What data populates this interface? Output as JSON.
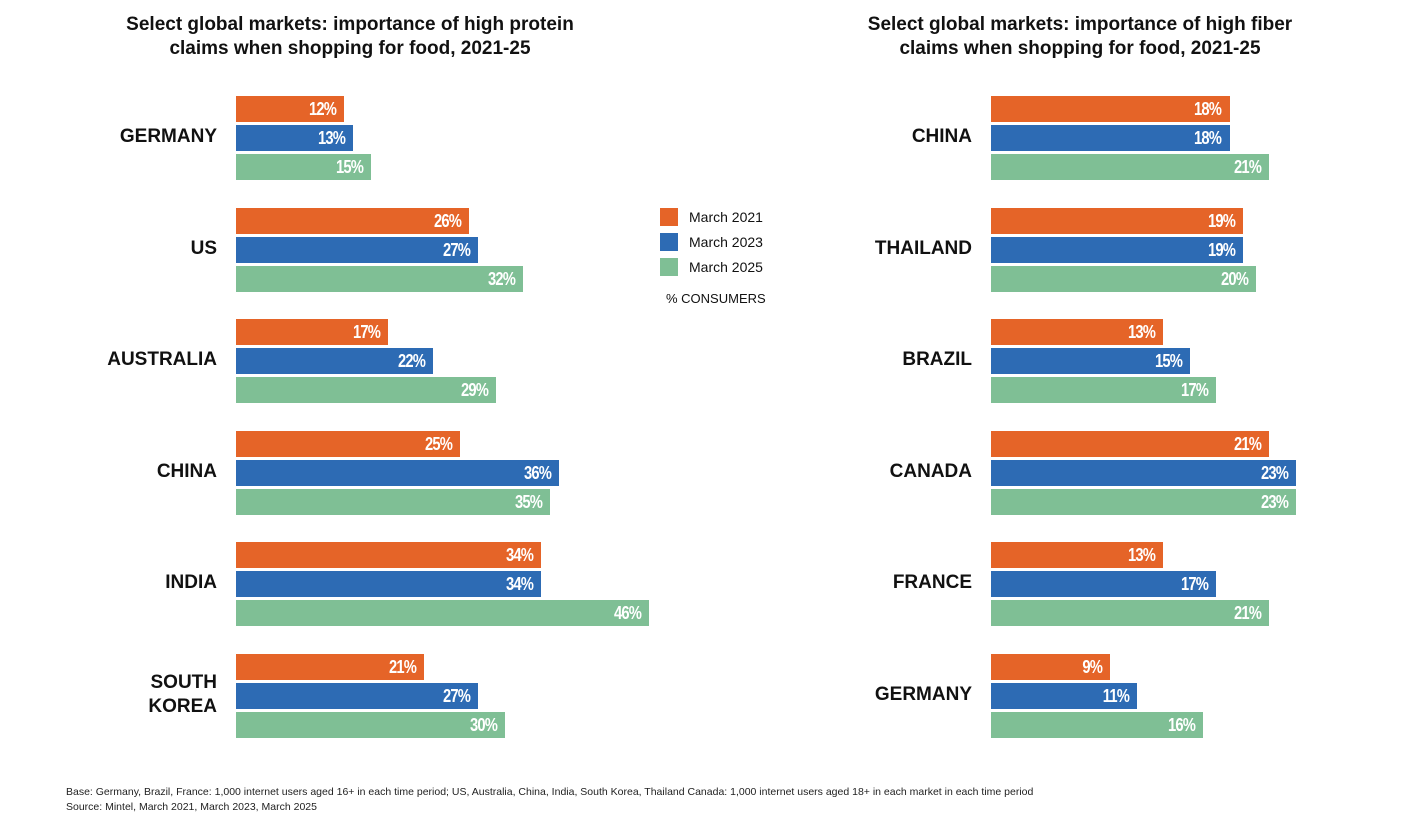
{
  "legend": {
    "items": [
      {
        "label": "March 2021",
        "color": "#e56428"
      },
      {
        "label": "March 2023",
        "color": "#2d6bb4"
      },
      {
        "label": "March 2025",
        "color": "#7fbf95"
      }
    ],
    "units": "% CONSUMERS"
  },
  "footnotes": {
    "base": "Base: Germany, Brazil, France: 1,000 internet users aged 16+ in each time period; US, Australia, China, India, South Korea, Thailand Canada: 1,000 internet users aged 18+ in each market in each time period",
    "source": "Source: Mintel, March 2021, March 2023, March 2025"
  },
  "chart_data": [
    {
      "type": "bar",
      "orientation": "horizontal",
      "title": "Select global markets: importance of high protein claims when shopping for food, 2021-25",
      "title_lines": [
        "Select global markets: importance of high protein",
        "claims when shopping for food, 2021-25"
      ],
      "xlabel": "% CONSUMERS",
      "ylabel": "",
      "categories": [
        "GERMANY",
        "US",
        "AUSTRALIA",
        "CHINA",
        "INDIA",
        "SOUTH KOREA"
      ],
      "series": [
        {
          "name": "March 2021",
          "values": [
            12,
            26,
            17,
            25,
            34,
            21
          ]
        },
        {
          "name": "March 2023",
          "values": [
            13,
            27,
            22,
            36,
            34,
            27
          ]
        },
        {
          "name": "March 2025",
          "values": [
            15,
            32,
            29,
            35,
            46,
            30
          ]
        }
      ],
      "value_suffix": "%",
      "xlim": [
        0,
        50
      ],
      "grid": false,
      "legend_position": "center"
    },
    {
      "type": "bar",
      "orientation": "horizontal",
      "title": "Select global markets: importance of high fiber claims when shopping for food, 2021-25",
      "title_lines": [
        "Select global markets: importance of high fiber",
        "claims when shopping for food, 2021-25"
      ],
      "xlabel": "% CONSUMERS",
      "ylabel": "",
      "categories": [
        "CHINA",
        "THAILAND",
        "BRAZIL",
        "CANADA",
        "FRANCE",
        "GERMANY"
      ],
      "series": [
        {
          "name": "March 2021",
          "values": [
            18,
            19,
            13,
            21,
            13,
            9
          ]
        },
        {
          "name": "March 2023",
          "values": [
            18,
            19,
            15,
            23,
            17,
            11
          ]
        },
        {
          "name": "March 2025",
          "values": [
            21,
            20,
            17,
            23,
            21,
            16
          ]
        }
      ],
      "value_suffix": "%",
      "xlim": [
        0,
        25
      ],
      "grid": false,
      "legend_position": "center"
    }
  ]
}
